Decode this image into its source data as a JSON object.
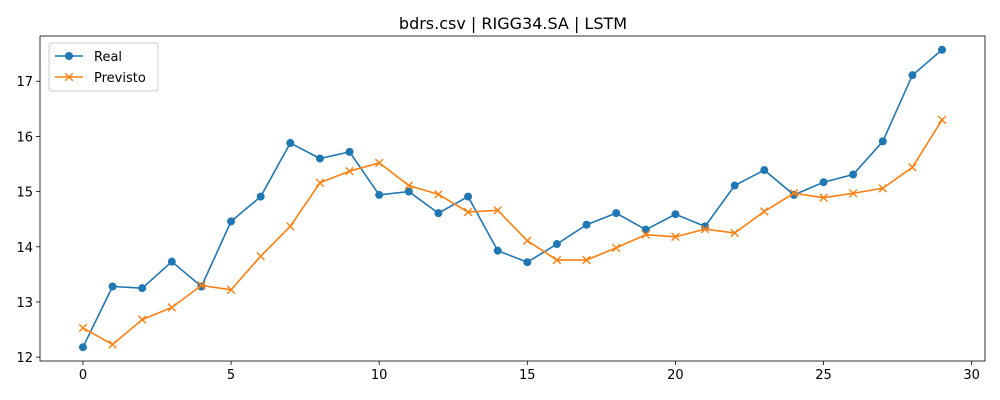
{
  "chart_data": {
    "type": "line",
    "title": "bdrs.csv | RIGG34.SA | LSTM",
    "xlabel": "",
    "ylabel": "",
    "xlim": [
      -1.45,
      30.45
    ],
    "ylim": [
      11.93,
      17.82
    ],
    "x_ticks": [
      0,
      5,
      10,
      15,
      20,
      25,
      30
    ],
    "y_ticks": [
      12,
      13,
      14,
      15,
      16,
      17
    ],
    "grid": false,
    "legend_position": "top-left",
    "x": [
      0,
      1,
      2,
      3,
      4,
      5,
      6,
      7,
      8,
      9,
      10,
      11,
      12,
      13,
      14,
      15,
      16,
      17,
      18,
      19,
      20,
      21,
      22,
      23,
      24,
      25,
      26,
      27,
      28,
      29
    ],
    "series": [
      {
        "name": "Real",
        "color": "#1f77b4",
        "marker": "circle",
        "values": [
          12.18,
          13.28,
          13.25,
          13.73,
          13.28,
          14.46,
          14.91,
          15.88,
          15.6,
          15.72,
          14.94,
          15.0,
          14.61,
          14.91,
          13.93,
          13.72,
          14.05,
          14.4,
          14.61,
          14.31,
          14.59,
          14.37,
          15.11,
          15.39,
          14.94,
          15.17,
          15.31,
          15.91,
          17.11,
          17.57
        ]
      },
      {
        "name": "Previsto",
        "color": "#ff7f0e",
        "marker": "x",
        "values": [
          12.53,
          12.23,
          12.68,
          12.9,
          13.3,
          13.22,
          13.83,
          14.37,
          15.16,
          15.37,
          15.52,
          15.11,
          14.95,
          14.63,
          14.66,
          14.11,
          13.76,
          13.76,
          13.98,
          14.22,
          14.18,
          14.32,
          14.25,
          14.64,
          14.97,
          14.89,
          14.97,
          15.06,
          15.44,
          16.3
        ]
      }
    ]
  }
}
